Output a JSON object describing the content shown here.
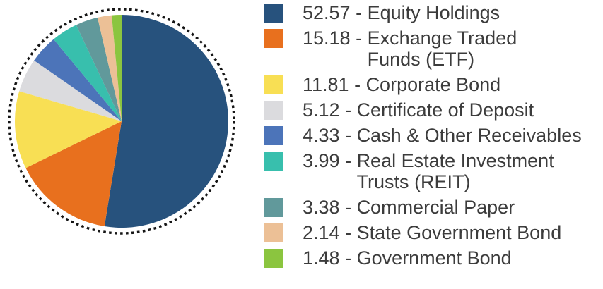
{
  "chart_data": {
    "type": "pie",
    "title": "",
    "legend_position": "right",
    "start_angle": "12-oclock",
    "direction": "clockwise",
    "separator": " - ",
    "series": [
      {
        "value": 52.57,
        "label": "Equity Holdings",
        "label_lines": [
          "Equity Holdings"
        ],
        "color": "#27527D"
      },
      {
        "value": 15.18,
        "label": "Exchange Traded Funds (ETF)",
        "label_lines": [
          "Exchange Traded",
          "Funds (ETF)"
        ],
        "color": "#E8701E"
      },
      {
        "value": 11.81,
        "label": "Corporate Bond",
        "label_lines": [
          "Corporate Bond"
        ],
        "color": "#F8DF54"
      },
      {
        "value": 5.12,
        "label": "Certificate of Deposit",
        "label_lines": [
          "Certificate of Deposit"
        ],
        "color": "#DBDBDE"
      },
      {
        "value": 4.33,
        "label": "Cash & Other Receivables",
        "label_lines": [
          "Cash & Other Receivables"
        ],
        "color": "#4C74B9"
      },
      {
        "value": 3.99,
        "label": "Real Estate Investment Trusts (REIT)",
        "label_lines": [
          "Real Estate Investment",
          "Trusts (REIT)"
        ],
        "color": "#38BFAD"
      },
      {
        "value": 3.38,
        "label": "Commercial Paper",
        "label_lines": [
          "Commercial Paper"
        ],
        "color": "#61999B"
      },
      {
        "value": 2.14,
        "label": "State Government Bond",
        "label_lines": [
          "State Government Bond"
        ],
        "color": "#ECC096"
      },
      {
        "value": 1.48,
        "label": "Government Bond",
        "label_lines": [
          "Government Bond"
        ],
        "color": "#8BC53F"
      }
    ],
    "styles": {
      "text_color": "#3C3C3C",
      "dotted_border_color": "#151515",
      "background": "#ffffff"
    },
    "geometry": {
      "pie_center_x": 172,
      "pie_center_y": 172,
      "pie_radius": 151,
      "dotted_ring_radius": 159
    }
  }
}
